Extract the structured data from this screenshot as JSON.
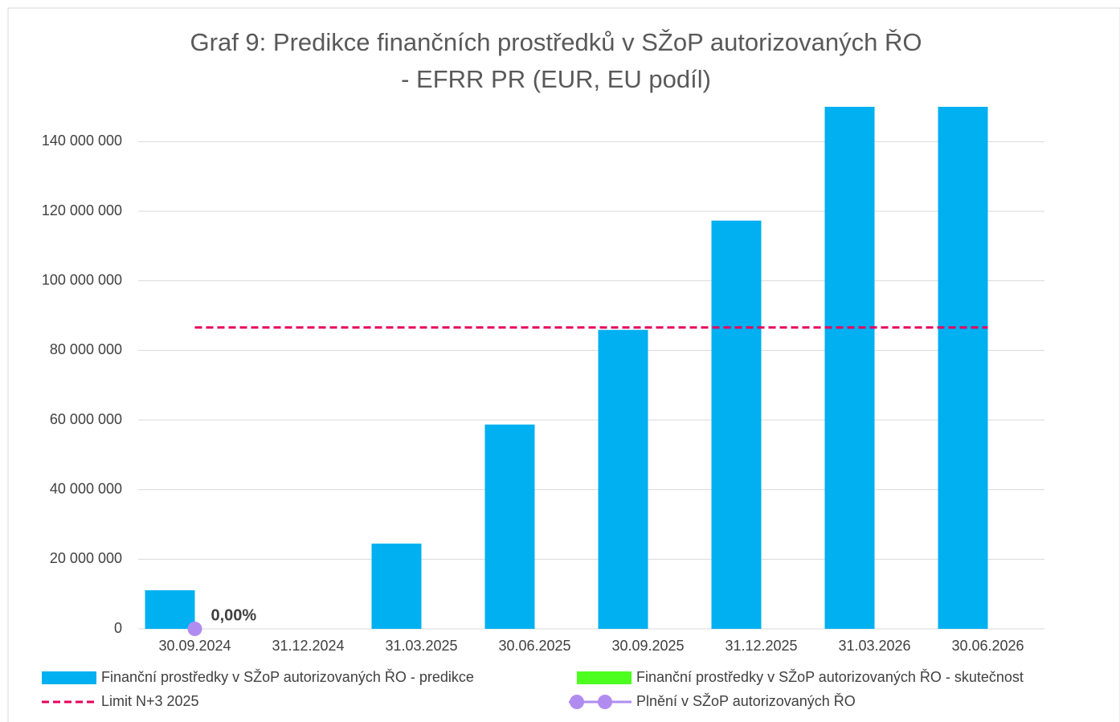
{
  "chart_data": {
    "type": "bar",
    "title": "Graf 9: Predikce finančních prostředků v SŽoP autorizovaných ŘO",
    "subtitle": "- EFRR PR (EUR, EU podíl)",
    "categories": [
      "30.09.2024",
      "31.12.2024",
      "31.03.2025",
      "30.06.2025",
      "30.09.2025",
      "31.12.2025",
      "31.03.2026",
      "30.06.2026"
    ],
    "series": [
      {
        "name": "Finanční prostředky v SŽoP autorizovaných ŘO - predikce",
        "color": "#00b0f0",
        "kind": "bar",
        "values": [
          11100000,
          0,
          24500000,
          58700000,
          85900000,
          117300000,
          150000000,
          150000000
        ]
      },
      {
        "name": "Finanční prostředky v SŽoP autorizovaných ŘO - skutečnost",
        "color": "#4cff1f",
        "kind": "bar",
        "values": [
          null,
          null,
          null,
          null,
          null,
          null,
          null,
          null
        ]
      },
      {
        "name": "Limit N+3 2025",
        "color": "#e6005c",
        "kind": "dashed-line",
        "values": [
          86600000,
          86600000,
          86600000,
          86600000,
          86600000,
          86600000,
          86600000,
          86600000
        ]
      },
      {
        "name": "Plnění v SŽoP autorizovaných ŘO",
        "color": "#b18cf0",
        "kind": "line-marker",
        "values": [
          0,
          null,
          null,
          null,
          null,
          null,
          null,
          null
        ],
        "value_labels": [
          "0,00%",
          null,
          null,
          null,
          null,
          null,
          null,
          null
        ]
      }
    ],
    "ylim": [
      0,
      150000000
    ],
    "yticks": [
      0,
      {
        "value": 20000000,
        "label": "20 000 000"
      },
      {
        "value": 40000000,
        "label": "40 000 000"
      },
      {
        "value": 60000000,
        "label": "60 000 000"
      },
      {
        "value": 80000000,
        "label": "80 000 000"
      },
      {
        "value": 100000000,
        "label": "100 000 000"
      },
      {
        "value": 120000000,
        "label": "120 000 000"
      },
      {
        "value": 140000000,
        "label": "140 000 000"
      }
    ],
    "grid": true
  }
}
